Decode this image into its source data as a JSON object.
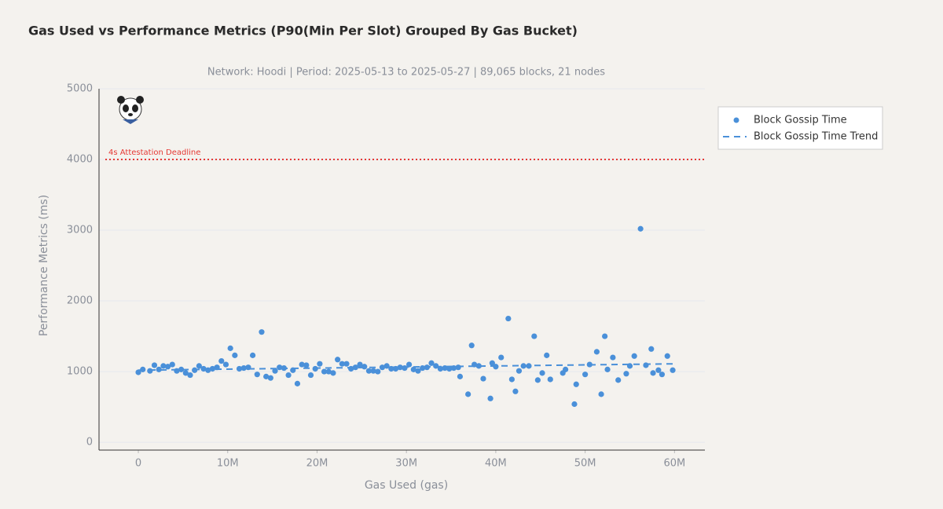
{
  "chart_data": {
    "type": "scatter",
    "title": "Gas Used vs Performance Metrics (P90(Min Per Slot) Grouped By Gas Bucket)",
    "subtitle": "Network: Hoodi | Period: 2025-05-13 to 2025-05-27 | 89,065 blocks, 21 nodes",
    "x_label": "Gas Used (gas)",
    "y_label": "Performance Metrics (ms)",
    "xlim": [
      -4400000,
      63400000
    ],
    "ylim": [
      -110,
      5000
    ],
    "xticks": [
      0,
      {
        "value": 10000000,
        "label": "10M"
      },
      {
        "value": 20000000,
        "label": "20M"
      },
      {
        "value": 30000000,
        "label": "30M"
      },
      {
        "value": 40000000,
        "label": "40M"
      },
      {
        "value": 50000000,
        "label": "50M"
      },
      {
        "value": 60000000,
        "label": "60M"
      }
    ],
    "yticks": [
      0,
      1000,
      2000,
      3000,
      4000,
      5000
    ],
    "grid": true,
    "legend": "top-right",
    "annotations": [
      {
        "y": 4000,
        "label": "4s Attestation Deadline",
        "color": "#e53935"
      }
    ],
    "series": [
      {
        "name": "Block Gossip Time",
        "color": "#4a90d9",
        "style": "markers",
        "x": [
          0,
          500000,
          1300000,
          1800000,
          2300000,
          2800000,
          3300000,
          3800000,
          4300000,
          4800000,
          5300000,
          5800000,
          6300000,
          6800000,
          7300000,
          7800000,
          8300000,
          8800000,
          9300000,
          9800000,
          10300000,
          10800000,
          11300000,
          11800000,
          12300000,
          12800000,
          13300000,
          13800000,
          14300000,
          14800000,
          15300000,
          15800000,
          16300000,
          16800000,
          17300000,
          17800000,
          18300000,
          18800000,
          19300000,
          19800000,
          20300000,
          20800000,
          21300000,
          21800000,
          22300000,
          22800000,
          23300000,
          23800000,
          24300000,
          24800000,
          25300000,
          25800000,
          26300000,
          26800000,
          27300000,
          27800000,
          28300000,
          28800000,
          29300000,
          29800000,
          30300000,
          30800000,
          31300000,
          31800000,
          32300000,
          32800000,
          33300000,
          33800000,
          34300000,
          34800000,
          35300000,
          35800000,
          36000000,
          36900000,
          37300000,
          37600000,
          38100000,
          38600000,
          39400000,
          39600000,
          40000000,
          40600000,
          41400000,
          41800000,
          42200000,
          42600000,
          43100000,
          43700000,
          44300000,
          44700000,
          45200000,
          45700000,
          46100000,
          47500000,
          47800000,
          48800000,
          49000000,
          50000000,
          50500000,
          51300000,
          51800000,
          52200000,
          52500000,
          53100000,
          53700000,
          54600000,
          55000000,
          55500000,
          56200000,
          56800000,
          57400000,
          57600000,
          58200000,
          58600000,
          59200000,
          59800000
        ],
        "values": [
          990,
          1030,
          1010,
          1090,
          1030,
          1080,
          1070,
          1100,
          1010,
          1030,
          980,
          950,
          1020,
          1080,
          1040,
          1020,
          1040,
          1060,
          1150,
          1100,
          1330,
          1230,
          1040,
          1050,
          1060,
          1230,
          960,
          1560,
          930,
          910,
          1010,
          1060,
          1050,
          950,
          1020,
          830,
          1100,
          1090,
          950,
          1040,
          1110,
          1000,
          1000,
          980,
          1170,
          1110,
          1110,
          1040,
          1060,
          1100,
          1070,
          1010,
          1010,
          1000,
          1060,
          1080,
          1040,
          1040,
          1060,
          1050,
          1100,
          1030,
          1010,
          1050,
          1060,
          1120,
          1080,
          1040,
          1050,
          1040,
          1050,
          1060,
          930,
          680,
          1370,
          1100,
          1080,
          900,
          620,
          1120,
          1070,
          1200,
          1750,
          890,
          720,
          1010,
          1080,
          1080,
          1500,
          880,
          980,
          1230,
          890,
          980,
          1030,
          540,
          820,
          960,
          1100,
          1280,
          680,
          1500,
          1030,
          1200,
          880,
          970,
          1080,
          1220,
          3020,
          1090,
          1320,
          980,
          1020,
          960,
          1220,
          1020
        ]
      },
      {
        "name": "Block Gossip Time Trend",
        "color": "#4a90d9",
        "style": "dashed",
        "x": [
          0,
          60000000
        ],
        "values": [
          1020,
          1110
        ]
      }
    ]
  }
}
